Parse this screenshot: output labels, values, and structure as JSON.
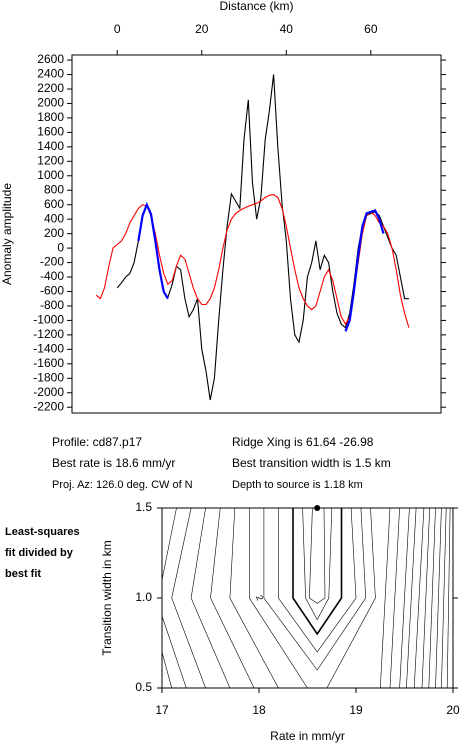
{
  "chart_data": [
    {
      "type": "line",
      "xlabel": "Distance (km)",
      "ylabel": "Anomaly amplitude",
      "xlim": [
        -10.7,
        76.6
      ],
      "xticks": [
        0,
        20,
        40,
        60
      ],
      "ylim": [
        -2280,
        2670
      ],
      "yticks": [
        -2200,
        -2000,
        -1800,
        -1600,
        -1400,
        -1200,
        -1000,
        -800,
        -600,
        -400,
        -200,
        0,
        200,
        400,
        600,
        800,
        1000,
        1200,
        1400,
        1600,
        1800,
        2000,
        2200,
        2400,
        2600
      ],
      "grid": false,
      "series": [
        {
          "color": "#000000",
          "x": [
            0,
            1,
            2,
            3,
            4,
            5,
            6,
            7,
            8,
            9,
            10,
            11,
            12,
            13,
            14,
            15,
            16,
            17,
            18,
            19,
            20,
            21,
            22,
            23,
            24,
            25,
            26,
            27,
            28,
            29,
            30,
            31,
            32,
            33,
            34,
            35,
            36,
            37,
            38,
            39,
            40,
            41,
            42,
            43,
            44,
            45,
            46,
            47,
            48,
            49,
            50,
            51,
            52,
            53,
            54,
            55,
            56,
            57,
            58,
            59,
            60,
            61,
            62,
            63,
            64,
            65,
            66,
            67,
            68,
            69
          ],
          "values": [
            -550,
            -480,
            -400,
            -350,
            -200,
            100,
            450,
            590,
            450,
            100,
            -300,
            -600,
            -680,
            -500,
            -250,
            -300,
            -700,
            -950,
            -850,
            -700,
            -1400,
            -1700,
            -2100,
            -1800,
            -1000,
            -300,
            300,
            750,
            650,
            550,
            1500,
            2050,
            900,
            400,
            700,
            1500,
            1900,
            2400,
            1400,
            600,
            100,
            -700,
            -1200,
            -1300,
            -1000,
            -400,
            -200,
            100,
            -300,
            -100,
            -200,
            -600,
            -900,
            -1050,
            -1100,
            -900,
            -500,
            0,
            300,
            450,
            480,
            500,
            450,
            300,
            150,
            0,
            -100,
            -400,
            -700,
            -700
          ]
        },
        {
          "color": "#ff0000",
          "x": [
            -5,
            -4,
            -3,
            -2,
            -1,
            0,
            1,
            2,
            3,
            4,
            5,
            6,
            7,
            8,
            9,
            10,
            11,
            12,
            13,
            14,
            15,
            16,
            17,
            18,
            19,
            20,
            21,
            22,
            23,
            24,
            25,
            26,
            27,
            28,
            29,
            30,
            31,
            32,
            33,
            34,
            35,
            36,
            37,
            38,
            39,
            40,
            41,
            42,
            43,
            44,
            45,
            46,
            47,
            48,
            49,
            50,
            51,
            52,
            53,
            54,
            55,
            56,
            57,
            58,
            59,
            60,
            61,
            62,
            63,
            64,
            65,
            66,
            67,
            68,
            69
          ],
          "values": [
            -650,
            -700,
            -550,
            -250,
            0,
            50,
            100,
            200,
            350,
            450,
            550,
            600,
            580,
            450,
            200,
            -100,
            -350,
            -500,
            -450,
            -250,
            -100,
            -150,
            -350,
            -550,
            -700,
            -780,
            -780,
            -700,
            -550,
            -300,
            0,
            250,
            400,
            480,
            520,
            550,
            580,
            600,
            620,
            650,
            700,
            730,
            740,
            700,
            550,
            300,
            0,
            -300,
            -550,
            -700,
            -800,
            -850,
            -800,
            -600,
            -400,
            -300,
            -450,
            -700,
            -950,
            -1050,
            -950,
            -600,
            -200,
            200,
            450,
            500,
            450,
            350,
            300,
            200,
            0,
            -300,
            -650,
            -900,
            -1100
          ]
        },
        {
          "color": "#0000ff",
          "x": [
            5,
            6,
            7,
            8,
            9,
            10,
            11,
            12,
            33,
            54,
            55,
            56,
            57,
            58,
            59,
            60,
            61,
            62,
            63
          ],
          "values": [
            100,
            450,
            600,
            470,
            100,
            -300,
            -600,
            -700,
            null,
            -1150,
            -1000,
            -600,
            -100,
            300,
            480,
            500,
            520,
            400,
            200
          ]
        }
      ],
      "annotations": [
        "Profile: cd87.p17",
        "Ridge Xing is 61.64 -26.98",
        "Best rate is 18.6 mm/yr",
        "Best transition width is 1.5 km",
        "Proj. Az: 126.0 deg. CW of N",
        "Depth to source is   1.18 km"
      ]
    },
    {
      "type": "contour",
      "xlabel": "Rate in mm/yr",
      "ylabel": "Transition width in km",
      "note": [
        "Least-squares",
        "fit divided by",
        "best fit"
      ],
      "xlim": [
        17,
        20
      ],
      "xticks": [
        17,
        18,
        19,
        20
      ],
      "ylim": [
        0.5,
        1.5
      ],
      "yticks": [
        0.5,
        {
          "value": 1,
          "label": "1.0"
        },
        1.5
      ],
      "best_fit": {
        "x": 18.6,
        "y": 1.5
      },
      "contour_label": {
        "text": "2",
        "x": 18.0,
        "y": 1.0
      },
      "contours": [
        {
          "x": [
            18.55,
            18.52,
            18.6,
            18.68,
            18.67
          ],
          "y": [
            1.5,
            1.0,
            0.97,
            1.0,
            1.5
          ]
        },
        {
          "x": [
            18.45,
            18.48,
            18.6,
            18.72,
            18.75
          ],
          "y": [
            1.5,
            1.0,
            0.88,
            1.0,
            1.5
          ]
        },
        {
          "x": [
            18.35,
            18.35,
            18.6,
            18.85,
            18.85
          ],
          "y": [
            1.5,
            1.0,
            0.8,
            1.0,
            1.5
          ]
        },
        {
          "x": [
            18.2,
            18.2,
            18.6,
            19.0,
            18.95
          ],
          "y": [
            1.5,
            1.0,
            0.7,
            1.0,
            1.5
          ]
        },
        {
          "x": [
            18.05,
            18.05,
            18.6,
            19.1,
            19.05
          ],
          "y": [
            1.5,
            1.0,
            0.6,
            1.0,
            1.5
          ]
        },
        {
          "x": [
            17.9,
            17.9,
            18.5,
            18.7,
            19.2,
            19.15
          ],
          "y": [
            1.5,
            1.0,
            0.5,
            0.5,
            1.0,
            1.5
          ]
        },
        {
          "x": [
            17.75,
            17.7,
            18.2
          ],
          "y": [
            1.5,
            1.0,
            0.5
          ]
        },
        {
          "x": [
            17.6,
            17.5,
            17.95
          ],
          "y": [
            1.5,
            1.0,
            0.5
          ]
        },
        {
          "x": [
            17.45,
            17.3,
            17.7
          ],
          "y": [
            1.5,
            1.0,
            0.5
          ]
        },
        {
          "x": [
            17.3,
            17.1,
            17.45
          ],
          "y": [
            1.5,
            1.0,
            0.5
          ]
        },
        {
          "x": [
            17.15,
            17.0
          ],
          "y": [
            1.5,
            1.1
          ]
        },
        {
          "x": [
            17.0,
            17.25
          ],
          "y": [
            0.9,
            0.5
          ]
        },
        {
          "x": [
            17.0,
            17.1
          ],
          "y": [
            0.7,
            0.5
          ]
        },
        {
          "x": [
            19.35,
            19.25
          ],
          "y": [
            1.5,
            0.5
          ]
        },
        {
          "x": [
            19.45,
            19.35
          ],
          "y": [
            1.5,
            0.5
          ]
        },
        {
          "x": [
            19.55,
            19.45
          ],
          "y": [
            1.5,
            0.5
          ]
        },
        {
          "x": [
            19.62,
            19.52
          ],
          "y": [
            1.5,
            0.5
          ]
        },
        {
          "x": [
            19.7,
            19.6
          ],
          "y": [
            1.5,
            0.5
          ]
        },
        {
          "x": [
            19.76,
            19.68
          ],
          "y": [
            1.5,
            0.5
          ]
        },
        {
          "x": [
            19.82,
            19.75
          ],
          "y": [
            1.5,
            0.5
          ]
        },
        {
          "x": [
            19.88,
            19.82
          ],
          "y": [
            1.5,
            0.5
          ]
        },
        {
          "x": [
            19.93,
            19.88
          ],
          "y": [
            1.5,
            0.5
          ]
        },
        {
          "x": [
            19.97,
            19.94
          ],
          "y": [
            1.5,
            0.5
          ]
        }
      ]
    }
  ]
}
